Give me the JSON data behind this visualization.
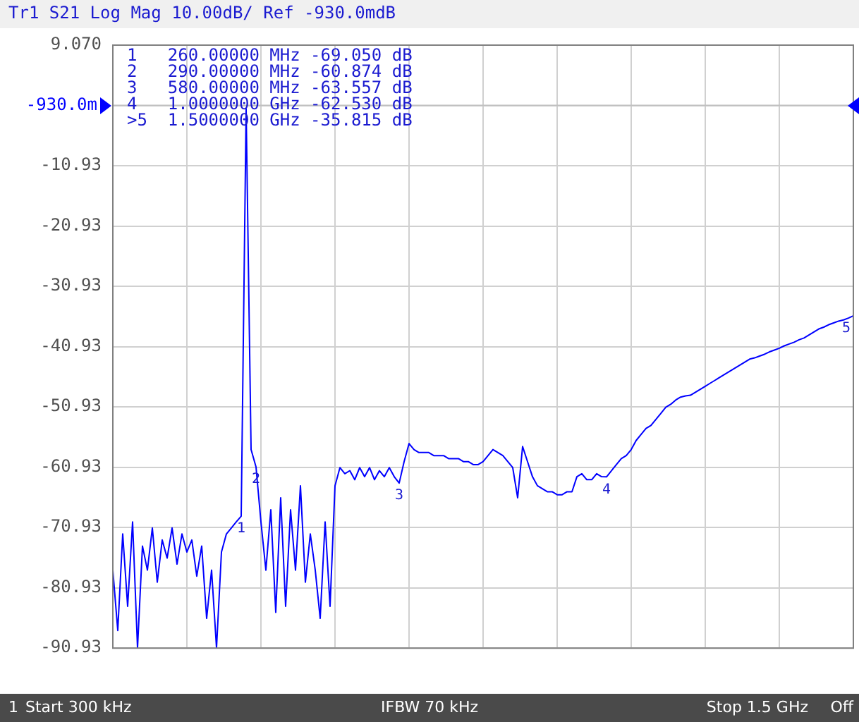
{
  "chart_data": {
    "type": "line",
    "title": "Tr1 S21 Log Mag 10.00dB/ Ref -930.0mdB",
    "categories": [
      null,
      null,
      null,
      null,
      null,
      null,
      null,
      null,
      null,
      null,
      null,
      null,
      null,
      null,
      null,
      null,
      null,
      null,
      null,
      null,
      null,
      null,
      null,
      null,
      null,
      null,
      null,
      null,
      null,
      null,
      null,
      null,
      null,
      null,
      null,
      null,
      null,
      null,
      null,
      null,
      null,
      null,
      null,
      null,
      null,
      null,
      null,
      null,
      null,
      null,
      null,
      null,
      null,
      null,
      null,
      null,
      null,
      null,
      null,
      null,
      null,
      null,
      null,
      null,
      null,
      null,
      null,
      null,
      null,
      null,
      null,
      null,
      null,
      null,
      null,
      null,
      null,
      null,
      null,
      null,
      null,
      null,
      null,
      null,
      null,
      null,
      null,
      null,
      null,
      null,
      null,
      null,
      null,
      null,
      null,
      null,
      null,
      null,
      null,
      null,
      null,
      null,
      null,
      null,
      null,
      null,
      null,
      null,
      null,
      null,
      null,
      null,
      null,
      null,
      null,
      null,
      null,
      null,
      null,
      null,
      null,
      null,
      null,
      null,
      null,
      null,
      null,
      null,
      null,
      null,
      null,
      null,
      null,
      null,
      null,
      null,
      null,
      null,
      null,
      null,
      null,
      null,
      null,
      null,
      null,
      null,
      null,
      null,
      null,
      null,
      null
    ],
    "series": [
      {
        "color": "#0000ff",
        "values": [
          -78,
          -88,
          -72,
          -84,
          -70,
          -90.9,
          -74,
          -78,
          -71,
          -80,
          -73,
          -76,
          -71,
          -77,
          -72,
          -75,
          -73,
          -79,
          -74,
          -86,
          -78,
          -90.9,
          -75,
          -72,
          -71,
          -70,
          -69.05,
          -1.5,
          -58,
          -60.874,
          -70,
          -78,
          -68,
          -85,
          -66,
          -84,
          -68,
          -78,
          -64,
          -80,
          -72,
          -78,
          -86,
          -70,
          -84,
          -64,
          -61,
          -62,
          -61.5,
          -63,
          -61,
          -62.5,
          -61,
          -63,
          -61.5,
          -62.5,
          -61,
          -62.5,
          -63.557,
          -60,
          -57,
          -58,
          -58.5,
          -58.5,
          -58.5,
          -59,
          -59,
          -59,
          -59.5,
          -59.5,
          -59.5,
          -60,
          -60,
          -60.5,
          -60.5,
          -60,
          -59,
          -58,
          -58.5,
          -59,
          -60,
          -61,
          -66,
          -57.5,
          -60,
          -62.5,
          -64,
          -64.5,
          -65,
          -65,
          -65.5,
          -65.5,
          -65,
          -65,
          -62.5,
          -62,
          -63,
          -63,
          -62,
          -62.5,
          -62.53,
          -61.5,
          -60.5,
          -59.5,
          -59,
          -58,
          -56.5,
          -55.5,
          -54.5,
          -54,
          -53,
          -52,
          -51,
          -50.5,
          -49.8,
          -49.3,
          -49.1,
          -49,
          -48.5,
          -48,
          -47.5,
          -47,
          -46.5,
          -46,
          -45.5,
          -45,
          -44.5,
          -44,
          -43.5,
          -43,
          -42.8,
          -42.5,
          -42.2,
          -41.8,
          -41.5,
          -41.2,
          -40.8,
          -40.5,
          -40.2,
          -39.8,
          -39.5,
          -39,
          -38.5,
          -38,
          -37.7,
          -37.3,
          -37,
          -36.7,
          -36.5,
          -36.2,
          -35.815
        ]
      }
    ],
    "ylim": [
      -90.93,
      9.07
    ],
    "yticks": [
      {
        "value": 9.07,
        "label": "9.070"
      },
      {
        "value": -0.93,
        "label": null
      },
      -10.93,
      -20.93,
      -30.93,
      -40.93,
      -50.93,
      -60.93,
      -70.93,
      -80.93,
      -90.93
    ],
    "ref_lines": [
      {
        "axis": "y",
        "value": -0.93,
        "label": "-930.0m"
      }
    ],
    "grid": true,
    "legend": false,
    "marker": "none",
    "line_style": "solid",
    "annotations": [
      "1   260.00000 MHz -69.050 dB",
      "2   290.00000 MHz -60.874 dB",
      "3   580.00000 MHz -63.557 dB",
      "4   1.0000000 GHz -62.530 dB",
      ">5  1.5000000 GHz -35.815 dB",
      {
        "text": "1",
        "y": -69.05
      },
      {
        "text": "2",
        "y": -60.874
      },
      {
        "text": "3",
        "y": -63.557
      },
      {
        "text": "4",
        "y": -62.53
      },
      {
        "text": "5",
        "y": -35.815
      },
      "1",
      "Start 300 kHz",
      "IFBW 70 kHz",
      "Stop 1.5 GHz",
      "Off"
    ]
  }
}
